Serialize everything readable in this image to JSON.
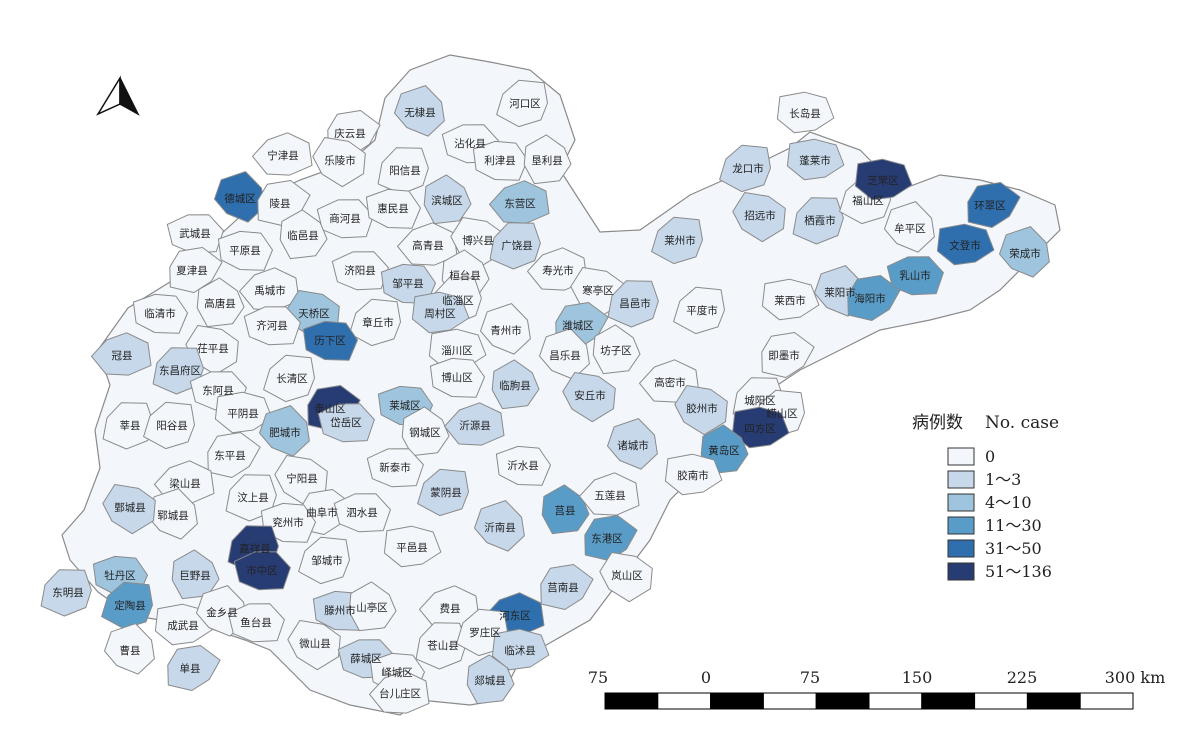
{
  "north_arrow": {
    "icon": "north-arrow-icon"
  },
  "legend": {
    "title_cn": "病例数",
    "title_en": "No. case",
    "classes": [
      {
        "label": "0",
        "color": "#f3f7fb"
      },
      {
        "label": "1～3",
        "color": "#c7d8eb"
      },
      {
        "label": "4～10",
        "color": "#9ec4de"
      },
      {
        "label": "11～30",
        "color": "#5a9cc8"
      },
      {
        "label": "31～50",
        "color": "#2f6fae"
      },
      {
        "label": "51～136",
        "color": "#283c74"
      }
    ]
  },
  "scale_bar": {
    "ticks": [
      "75",
      "0",
      "75",
      "150",
      "225",
      "300 km"
    ]
  },
  "counties": [
    {
      "name": "河口区",
      "class": 0
    },
    {
      "name": "长岛县",
      "class": 0
    },
    {
      "name": "无棣县",
      "class": 1
    },
    {
      "name": "庆云县",
      "class": 0
    },
    {
      "name": "沾化县",
      "class": 0
    },
    {
      "name": "利津县",
      "class": 0
    },
    {
      "name": "垦利县",
      "class": 0
    },
    {
      "name": "宁津县",
      "class": 0
    },
    {
      "name": "乐陵市",
      "class": 0
    },
    {
      "name": "阳信县",
      "class": 0
    },
    {
      "name": "龙口市",
      "class": 1
    },
    {
      "name": "蓬莱市",
      "class": 1
    },
    {
      "name": "德城区",
      "class": 4
    },
    {
      "name": "陵县",
      "class": 0
    },
    {
      "name": "商河县",
      "class": 0
    },
    {
      "name": "惠民县",
      "class": 0
    },
    {
      "name": "滨城区",
      "class": 1
    },
    {
      "name": "东营区",
      "class": 2
    },
    {
      "name": "招远市",
      "class": 1
    },
    {
      "name": "栖霞市",
      "class": 1
    },
    {
      "name": "福山区",
      "class": 0
    },
    {
      "name": "芝罘区",
      "class": 5
    },
    {
      "name": "牟平区",
      "class": 0
    },
    {
      "name": "环翠区",
      "class": 4
    },
    {
      "name": "武城县",
      "class": 0
    },
    {
      "name": "平原县",
      "class": 0
    },
    {
      "name": "临邑县",
      "class": 0
    },
    {
      "name": "高青县",
      "class": 0
    },
    {
      "name": "博兴县",
      "class": 0
    },
    {
      "name": "广饶县",
      "class": 1
    },
    {
      "name": "莱州市",
      "class": 1
    },
    {
      "name": "文登市",
      "class": 4
    },
    {
      "name": "荣成市",
      "class": 2
    },
    {
      "name": "夏津县",
      "class": 0
    },
    {
      "name": "济阳县",
      "class": 0
    },
    {
      "name": "邹平县",
      "class": 1
    },
    {
      "name": "桓台县",
      "class": 0
    },
    {
      "name": "寿光市",
      "class": 0
    },
    {
      "name": "寒亭区",
      "class": 0
    },
    {
      "name": "昌邑市",
      "class": 1
    },
    {
      "name": "平度市",
      "class": 0
    },
    {
      "name": "莱西市",
      "class": 0
    },
    {
      "name": "莱阳市",
      "class": 1
    },
    {
      "name": "海阳市",
      "class": 3
    },
    {
      "name": "乳山市",
      "class": 3
    },
    {
      "name": "临清市",
      "class": 0
    },
    {
      "name": "高唐县",
      "class": 0
    },
    {
      "name": "禹城市",
      "class": 0
    },
    {
      "name": "天桥区",
      "class": 2
    },
    {
      "name": "临淄区",
      "class": 0
    },
    {
      "name": "章丘市",
      "class": 0
    },
    {
      "name": "周村区",
      "class": 1
    },
    {
      "name": "青州市",
      "class": 0
    },
    {
      "name": "潍城区",
      "class": 2
    },
    {
      "name": "齐河县",
      "class": 0
    },
    {
      "name": "历下区",
      "class": 4
    },
    {
      "name": "坊子区",
      "class": 0
    },
    {
      "name": "冠县",
      "class": 1
    },
    {
      "name": "茌平县",
      "class": 0
    },
    {
      "name": "东昌府区",
      "class": 1
    },
    {
      "name": "长清区",
      "class": 0
    },
    {
      "name": "淄川区",
      "class": 0
    },
    {
      "name": "昌乐县",
      "class": 0
    },
    {
      "name": "即墨市",
      "class": 0
    },
    {
      "name": "东阿县",
      "class": 0
    },
    {
      "name": "博山区",
      "class": 0
    },
    {
      "name": "临朐县",
      "class": 1
    },
    {
      "name": "高密市",
      "class": 0
    },
    {
      "name": "安丘市",
      "class": 1
    },
    {
      "name": "莘县",
      "class": 0
    },
    {
      "name": "阳谷县",
      "class": 0
    },
    {
      "name": "平阴县",
      "class": 0
    },
    {
      "name": "肥城市",
      "class": 2
    },
    {
      "name": "泰山区",
      "class": 5
    },
    {
      "name": "岱岳区",
      "class": 1
    },
    {
      "name": "莱城区",
      "class": 2
    },
    {
      "name": "钢城区",
      "class": 0
    },
    {
      "name": "沂源县",
      "class": 1
    },
    {
      "name": "胶州市",
      "class": 1
    },
    {
      "name": "城阳区",
      "class": 0
    },
    {
      "name": "崂山区",
      "class": 0
    },
    {
      "name": "四方区",
      "class": 5
    },
    {
      "name": "诸城市",
      "class": 1
    },
    {
      "name": "东平县",
      "class": 0
    },
    {
      "name": "新泰市",
      "class": 0
    },
    {
      "name": "沂水县",
      "class": 0
    },
    {
      "name": "黄岛区",
      "class": 3
    },
    {
      "name": "梁山县",
      "class": 0
    },
    {
      "name": "宁阳县",
      "class": 0
    },
    {
      "name": "汶上县",
      "class": 0
    },
    {
      "name": "蒙阴县",
      "class": 1
    },
    {
      "name": "胶南市",
      "class": 0
    },
    {
      "name": "郓城县",
      "class": 0
    },
    {
      "name": "曲阜市",
      "class": 0
    },
    {
      "name": "泗水县",
      "class": 0
    },
    {
      "name": "兖州市",
      "class": 0
    },
    {
      "name": "莒县",
      "class": 3
    },
    {
      "name": "五莲县",
      "class": 0
    },
    {
      "name": "鄄城县",
      "class": 1
    },
    {
      "name": "嘉祥县",
      "class": 5
    },
    {
      "name": "邹城市",
      "class": 0
    },
    {
      "name": "平邑县",
      "class": 0
    },
    {
      "name": "沂南县",
      "class": 1
    },
    {
      "name": "东港区",
      "class": 3
    },
    {
      "name": "市中区",
      "class": 5
    },
    {
      "name": "牡丹区",
      "class": 2
    },
    {
      "name": "巨野县",
      "class": 1
    },
    {
      "name": "费县",
      "class": 0
    },
    {
      "name": "岚山区",
      "class": 0
    },
    {
      "name": "东明县",
      "class": 1
    },
    {
      "name": "定陶县",
      "class": 3
    },
    {
      "name": "成武县",
      "class": 0
    },
    {
      "name": "金乡县",
      "class": 0
    },
    {
      "name": "莒南县",
      "class": 1
    },
    {
      "name": "鱼台县",
      "class": 0
    },
    {
      "name": "滕州市",
      "class": 1
    },
    {
      "name": "山亭区",
      "class": 0
    },
    {
      "name": "河东区",
      "class": 4
    },
    {
      "name": "微山县",
      "class": 0
    },
    {
      "name": "苍山县",
      "class": 0
    },
    {
      "name": "罗庄区",
      "class": 0
    },
    {
      "name": "临沭县",
      "class": 1
    },
    {
      "name": "曹县",
      "class": 0
    },
    {
      "name": "单县",
      "class": 1
    },
    {
      "name": "薛城区",
      "class": 1
    },
    {
      "name": "峄城区",
      "class": 0
    },
    {
      "name": "郯城县",
      "class": 1
    },
    {
      "name": "台儿庄区",
      "class": 0
    }
  ]
}
